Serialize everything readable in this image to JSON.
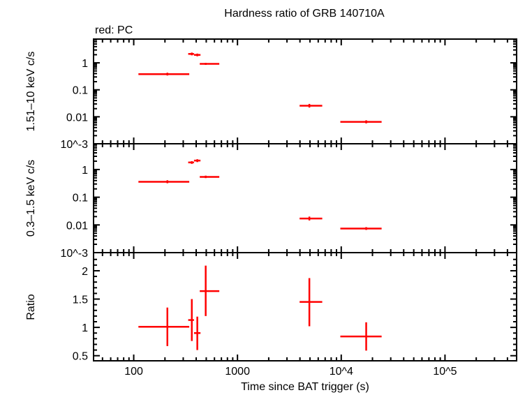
{
  "chart_data": {
    "type": "scatter",
    "title": "Hardness ratio of GRB 140710A",
    "legend_note": "red: PC",
    "xlabel": "Time since BAT trigger (s)",
    "x_scale": "log",
    "xlim": [
      41,
      490000
    ],
    "x_tick_labels": [
      "100",
      "1000",
      "10^4",
      "10^5"
    ],
    "x_tick_values": [
      100,
      1000,
      10000,
      100000
    ],
    "series_color": "#ff0000",
    "panels": [
      {
        "ylabel": "1.51–10 keV c/s",
        "y_scale": "log",
        "ylim": [
          0.001,
          7.6
        ],
        "y_tick_labels": [
          "1",
          "0.1",
          "0.01",
          "10^-3"
        ],
        "y_tick_values": [
          1,
          0.1,
          0.01,
          0.001
        ],
        "points": [
          {
            "x": 211,
            "xlo": 111,
            "xhi": 343,
            "y": 0.38,
            "ylo": 0.34,
            "yhi": 0.43
          },
          {
            "x": 363,
            "xlo": 335,
            "xhi": 381,
            "y": 2.14,
            "ylo": 1.9,
            "yhi": 2.4
          },
          {
            "x": 410,
            "xlo": 381,
            "xhi": 440,
            "y": 1.97,
            "ylo": 1.75,
            "yhi": 2.2
          },
          {
            "x": 494,
            "xlo": 433,
            "xhi": 668,
            "y": 0.92,
            "ylo": 0.84,
            "yhi": 1.0
          },
          {
            "x": 4930,
            "xlo": 3970,
            "xhi": 6560,
            "y": 0.0257,
            "ylo": 0.022,
            "yhi": 0.03
          },
          {
            "x": 17400,
            "xlo": 9800,
            "xhi": 24500,
            "y": 0.0065,
            "ylo": 0.0057,
            "yhi": 0.0074
          }
        ]
      },
      {
        "ylabel": "0.3–1.5 keV c/s",
        "y_scale": "log",
        "ylim": [
          0.001,
          8.5
        ],
        "y_tick_labels": [
          "1",
          "0.1",
          "0.01",
          "10^-3"
        ],
        "y_tick_values": [
          1,
          0.1,
          0.01,
          0.001
        ],
        "points": [
          {
            "x": 211,
            "xlo": 111,
            "xhi": 343,
            "y": 0.36,
            "ylo": 0.32,
            "yhi": 0.41
          },
          {
            "x": 363,
            "xlo": 335,
            "xhi": 381,
            "y": 1.8,
            "ylo": 1.6,
            "yhi": 2.0
          },
          {
            "x": 410,
            "xlo": 381,
            "xhi": 440,
            "y": 2.1,
            "ylo": 1.85,
            "yhi": 2.35
          },
          {
            "x": 494,
            "xlo": 433,
            "xhi": 668,
            "y": 0.54,
            "ylo": 0.49,
            "yhi": 0.6
          },
          {
            "x": 4930,
            "xlo": 3970,
            "xhi": 6560,
            "y": 0.017,
            "ylo": 0.0145,
            "yhi": 0.02
          },
          {
            "x": 17400,
            "xlo": 9800,
            "xhi": 24500,
            "y": 0.0074,
            "ylo": 0.0066,
            "yhi": 0.0083
          }
        ]
      },
      {
        "ylabel": "Ratio",
        "y_scale": "linear",
        "ylim": [
          0.41,
          2.32
        ],
        "y_tick_labels": [
          "2",
          "1.5",
          "1",
          "0.5"
        ],
        "y_tick_values": [
          2,
          1.5,
          1,
          0.5
        ],
        "points": [
          {
            "x": 211,
            "xlo": 111,
            "xhi": 343,
            "y": 1.01,
            "ylo": 0.67,
            "yhi": 1.35
          },
          {
            "x": 363,
            "xlo": 335,
            "xhi": 381,
            "y": 1.13,
            "ylo": 0.76,
            "yhi": 1.5
          },
          {
            "x": 410,
            "xlo": 381,
            "xhi": 440,
            "y": 0.9,
            "ylo": 0.6,
            "yhi": 1.19
          },
          {
            "x": 494,
            "xlo": 433,
            "xhi": 668,
            "y": 1.64,
            "ylo": 1.2,
            "yhi": 2.09
          },
          {
            "x": 4930,
            "xlo": 3970,
            "xhi": 6560,
            "y": 1.45,
            "ylo": 1.02,
            "yhi": 1.87
          },
          {
            "x": 17400,
            "xlo": 9800,
            "xhi": 24500,
            "y": 0.84,
            "ylo": 0.59,
            "yhi": 1.09
          }
        ]
      }
    ]
  }
}
